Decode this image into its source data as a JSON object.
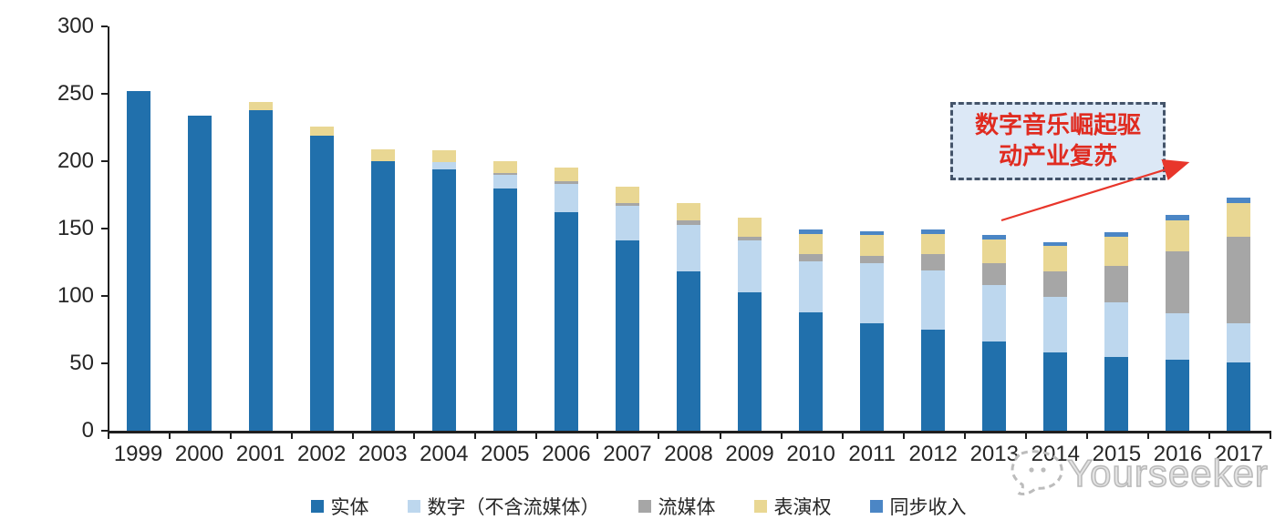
{
  "chart_data": {
    "type": "bar",
    "stacked": true,
    "title": "",
    "categories": [
      "1999",
      "2000",
      "2001",
      "2002",
      "2003",
      "2004",
      "2005",
      "2006",
      "2007",
      "2008",
      "2009",
      "2010",
      "2011",
      "2012",
      "2013",
      "2014",
      "2015",
      "2016",
      "2017"
    ],
    "series": [
      {
        "name": "实体",
        "color": "#2170ac",
        "values": [
          252,
          234,
          238,
          219,
          200,
          194,
          180,
          162,
          141,
          118,
          103,
          88,
          80,
          75,
          66,
          58,
          55,
          53,
          51
        ]
      },
      {
        "name": "数字（不含流媒体）",
        "color": "#bdd7ee",
        "values": [
          0,
          0,
          0,
          0,
          0,
          5,
          10,
          21,
          26,
          35,
          38,
          38,
          44,
          44,
          42,
          41,
          40,
          34,
          29
        ]
      },
      {
        "name": "流媒体",
        "color": "#a6a6a6",
        "values": [
          0,
          0,
          0,
          0,
          0,
          0,
          1,
          2,
          2,
          3,
          3,
          5,
          6,
          12,
          16,
          19,
          27,
          46,
          64
        ]
      },
      {
        "name": "表演权",
        "color": "#e9d793",
        "values": [
          0,
          0,
          6,
          7,
          9,
          9,
          9,
          10,
          12,
          13,
          14,
          15,
          15,
          15,
          18,
          19,
          22,
          23,
          25
        ]
      },
      {
        "name": "同步收入",
        "color": "#4b86c5",
        "values": [
          0,
          0,
          0,
          0,
          0,
          0,
          0,
          0,
          0,
          0,
          0,
          3,
          3,
          3,
          3,
          3,
          3,
          4,
          4
        ]
      }
    ],
    "ylim": [
      0,
      300
    ],
    "yticks": [
      0,
      50,
      100,
      150,
      200,
      250,
      300
    ],
    "grid": false,
    "legend_position": "bottom",
    "xlabel": "",
    "ylabel": ""
  },
  "annotation": {
    "line1": "数字音乐崛起驱",
    "line2": "动产业复苏",
    "arrow_color": "#e8362b"
  },
  "watermark": {
    "text": "Yourseeker"
  }
}
